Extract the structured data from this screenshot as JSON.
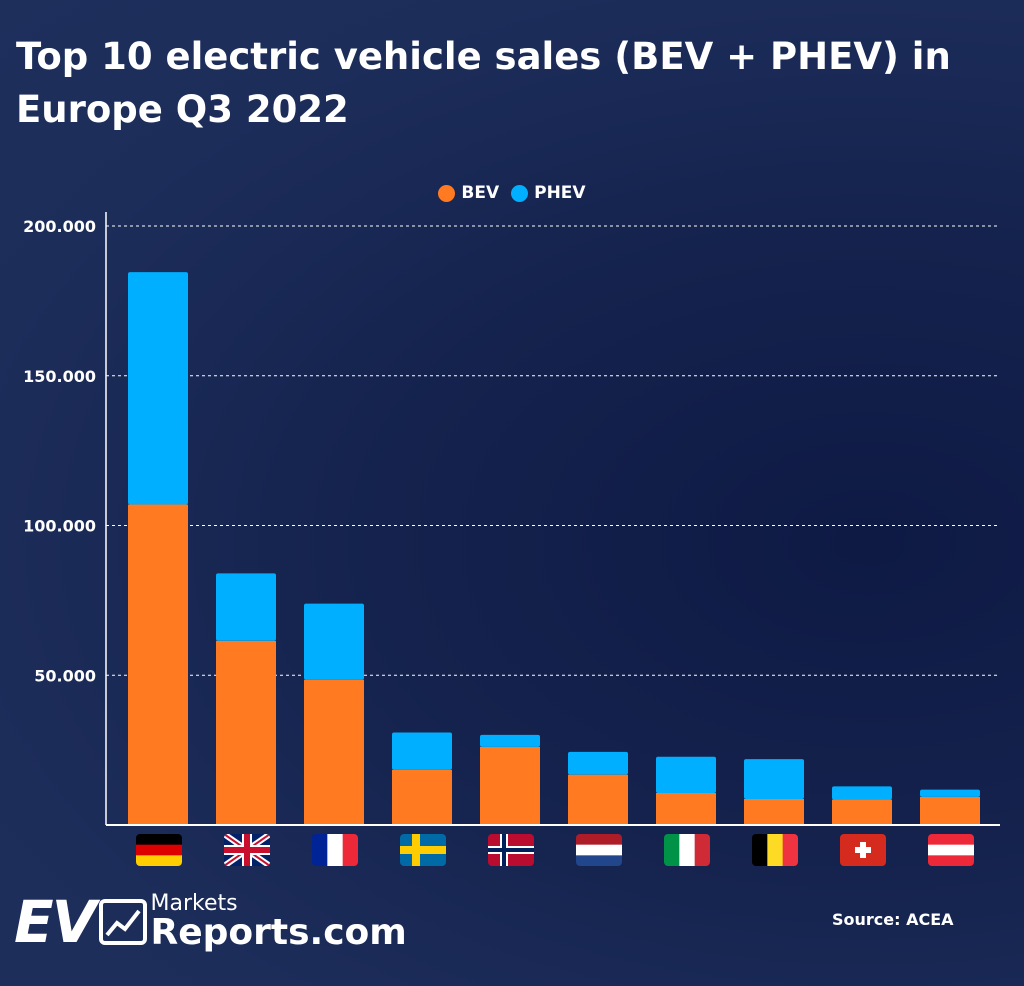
{
  "title": "Top 10 electric vehicle sales (BEV + PHEV) in Europe Q3 2022",
  "source": "Source: ACEA",
  "logo": {
    "ev": "EV",
    "markets": "Markets",
    "reports": "Reports.com"
  },
  "colors": {
    "BEV": "#ff7a21",
    "PHEV": "#00afff",
    "background": "#1d2d5a"
  },
  "chart_data": {
    "type": "bar",
    "stacked": true,
    "title": "Top 10 electric vehicle sales (BEV + PHEV) in Europe Q3 2022",
    "categories": [
      "Germany",
      "United Kingdom",
      "France",
      "Sweden",
      "Norway",
      "Netherlands",
      "Italy",
      "Belgium",
      "Switzerland",
      "Austria"
    ],
    "category_icons": [
      "flag-germany",
      "flag-uk",
      "flag-france",
      "flag-sweden",
      "flag-norway",
      "flag-netherlands",
      "flag-italy",
      "flag-belgium",
      "flag-switzerland",
      "flag-austria"
    ],
    "series": [
      {
        "name": "BEV",
        "values": [
          107000,
          61500,
          48500,
          18400,
          26100,
          16800,
          10700,
          8700,
          8500,
          9400
        ]
      },
      {
        "name": "PHEV",
        "values": [
          77600,
          22500,
          25400,
          12500,
          4000,
          7600,
          12100,
          13300,
          4400,
          2400
        ]
      }
    ],
    "yticks": [
      "50.000",
      "100.000",
      "150.000",
      "200.000"
    ],
    "ylim": [
      0,
      200000
    ],
    "grid": true,
    "legend": "top-center"
  }
}
